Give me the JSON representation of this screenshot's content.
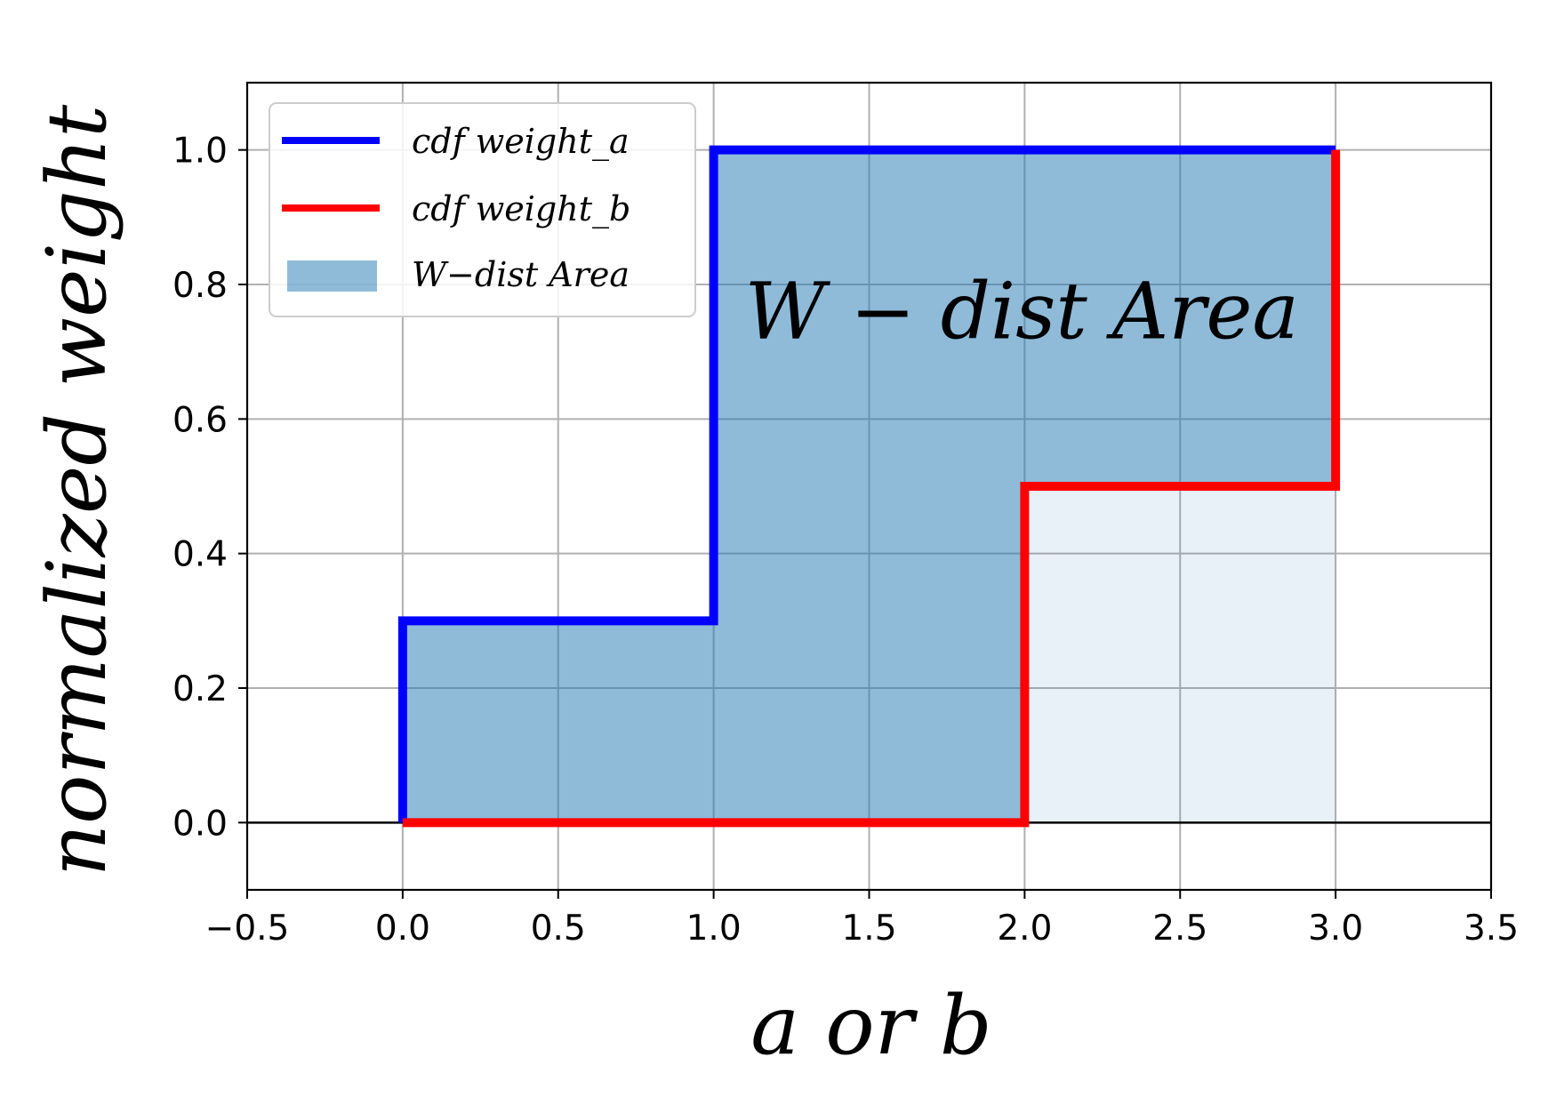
{
  "chart_data": {
    "type": "line",
    "xlabel": "a or b",
    "ylabel": "normalized weight",
    "xlim": [
      -0.5,
      3.5
    ],
    "ylim": [
      -0.1,
      1.1
    ],
    "xticks": [
      "−0.5",
      "0.0",
      "0.5",
      "1.0",
      "1.5",
      "2.0",
      "2.5",
      "3.0",
      "3.5"
    ],
    "xtick_values": [
      -0.5,
      0.0,
      0.5,
      1.0,
      1.5,
      2.0,
      2.5,
      3.0,
      3.5
    ],
    "yticks": [
      "0.0",
      "0.2",
      "0.4",
      "0.6",
      "0.8",
      "1.0"
    ],
    "ytick_values": [
      0.0,
      0.2,
      0.4,
      0.6,
      0.8,
      1.0
    ],
    "grid": true,
    "legend_position": "top-left",
    "series": [
      {
        "name": "cdf weight_a",
        "color": "#0000ff",
        "step": true,
        "x": [
          0.0,
          0.0,
          1.0,
          1.0,
          3.0
        ],
        "y": [
          0.0,
          0.3,
          0.3,
          1.0,
          1.0
        ]
      },
      {
        "name": "cdf weight_b",
        "color": "#ff0000",
        "step": true,
        "x": [
          0.0,
          2.0,
          2.0,
          3.0,
          3.0
        ],
        "y": [
          0.0,
          0.0,
          0.5,
          0.5,
          1.0
        ]
      }
    ],
    "fill": {
      "name": "W−dist Area",
      "color": "#1f77b4",
      "opacity": 0.5,
      "x": [
        0.0,
        0.0,
        1.0,
        1.0,
        3.0,
        3.0,
        2.0,
        2.0
      ],
      "y": [
        0.0,
        0.3,
        0.3,
        1.0,
        1.0,
        0.5,
        0.5,
        0.0
      ]
    },
    "light_fill": {
      "color": "#1f77b4",
      "opacity": 0.1,
      "x": [
        2.0,
        2.0,
        3.0,
        3.0
      ],
      "y": [
        0.0,
        0.5,
        0.5,
        0.0
      ]
    },
    "annotation": {
      "text": "W − dist Area",
      "x": 1.1,
      "y": 0.72
    }
  }
}
